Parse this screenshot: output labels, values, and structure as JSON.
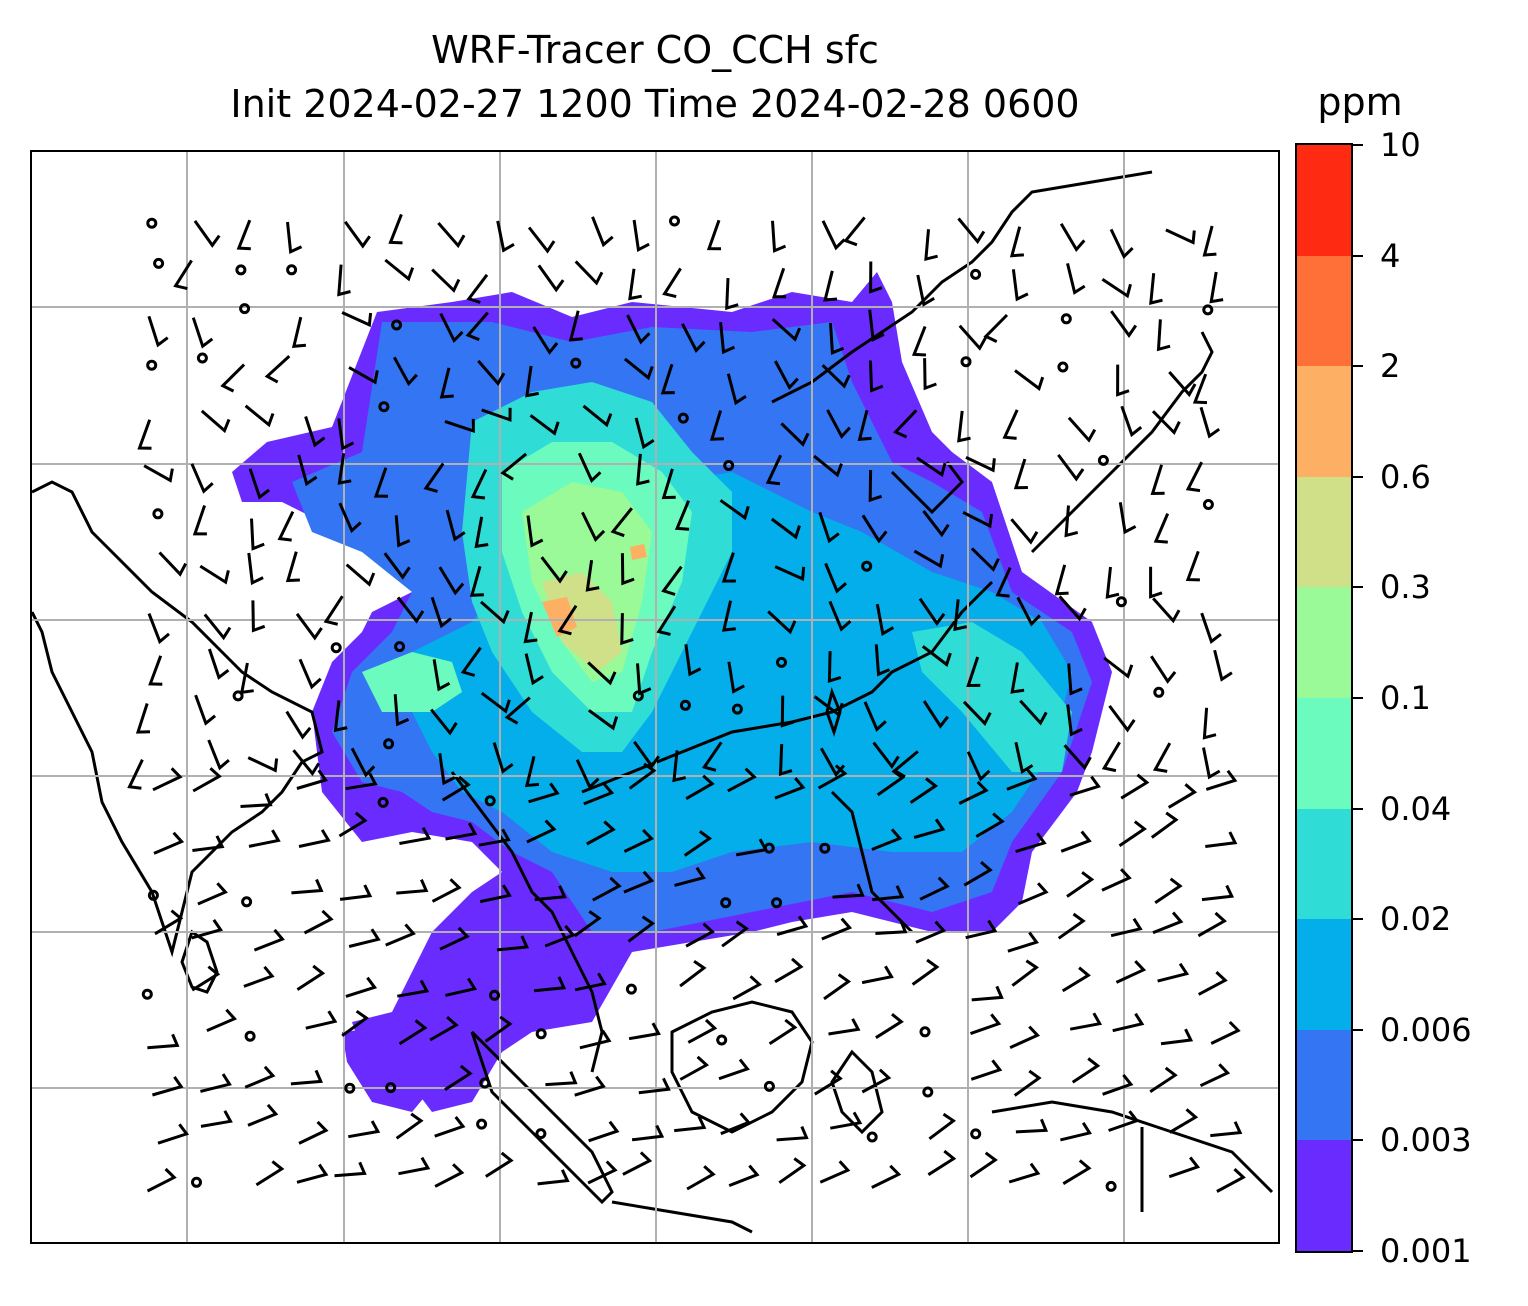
{
  "title": {
    "line1": "WRF-Tracer CO_CCH sfc",
    "line2": "Init 2024-02-27 1200 Time 2024-02-28 0600"
  },
  "colorbar": {
    "unit": "ppm",
    "levels": [
      "0.001",
      "0.003",
      "0.006",
      "0.02",
      "0.04",
      "0.1",
      "0.3",
      "0.6",
      "2",
      "4",
      "10"
    ],
    "colors": [
      "#6a2bff",
      "#3375f2",
      "#03aeea",
      "#2fdcd6",
      "#6cfbbf",
      "#99fa97",
      "#cfe089",
      "#fdb064",
      "#ff7038",
      "#ff2a12"
    ]
  },
  "map": {
    "gridlines": true,
    "coastline_color": "#000000",
    "gridline_color": "#b0b0b0",
    "plume_levels": [
      "#6a2bff",
      "#3375f2",
      "#03aeea",
      "#2fdcd6",
      "#6cfbbf",
      "#99fa97",
      "#cfe089",
      "#fdb064"
    ]
  }
}
